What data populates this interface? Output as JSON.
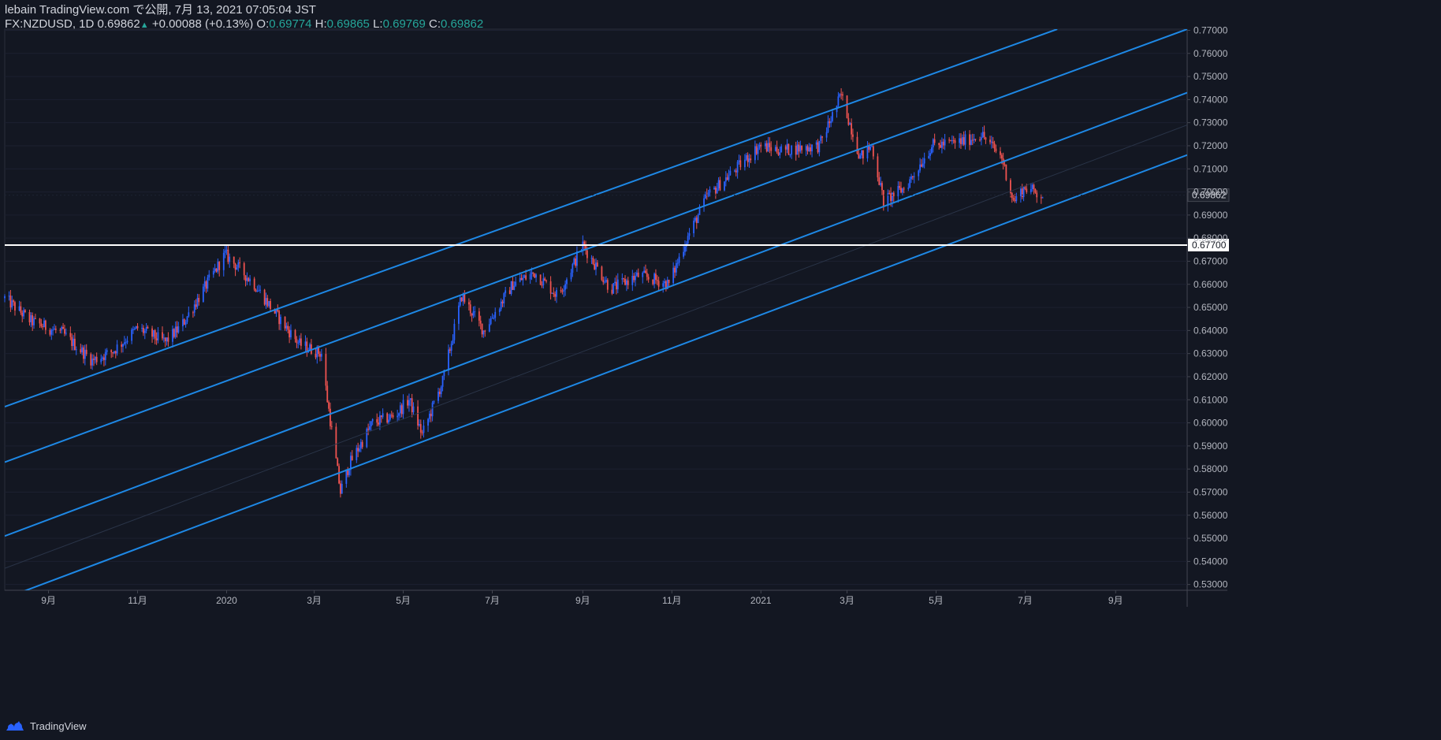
{
  "header": {
    "line1": "lebain TradingView.com で公開, 7月 13, 2021 07:05:04 JST",
    "symbol": "FX:NZDUSD, 1D",
    "last": "0.69862",
    "triangle": "▲",
    "change": "+0.00088 (+0.13%)",
    "o_label": "O:",
    "o_value": "0.69774",
    "h_label": "H:",
    "h_value": "0.69865",
    "l_label": "L:",
    "l_value": "0.69769",
    "c_label": "C:",
    "c_value": "0.69862"
  },
  "footer": {
    "brand": "TradingView"
  },
  "colors": {
    "background": "#131722",
    "up": "#2962ff",
    "down": "#ef5350",
    "channel": "#1e88e5",
    "level": "#ffffff"
  },
  "chart_data": {
    "type": "candlestick",
    "xlabel": "",
    "ylabel": "",
    "x_range": [
      "2019-08-02",
      "2021-10-20"
    ],
    "ylim": [
      0.5275,
      0.7705
    ],
    "y_ticks": [
      "0.77000",
      "0.76000",
      "0.75000",
      "0.74000",
      "0.73000",
      "0.72000",
      "0.71000",
      "0.70000",
      "0.69000",
      "0.68000",
      "0.67000",
      "0.66000",
      "0.65000",
      "0.64000",
      "0.63000",
      "0.62000",
      "0.61000",
      "0.60000",
      "0.59000",
      "0.58000",
      "0.57000",
      "0.56000",
      "0.55000",
      "0.54000",
      "0.53000"
    ],
    "x_ticks": [
      {
        "label": "9月",
        "date": "2019-09-01"
      },
      {
        "label": "11月",
        "date": "2019-11-01"
      },
      {
        "label": "2020",
        "date": "2020-01-01"
      },
      {
        "label": "3月",
        "date": "2020-03-01"
      },
      {
        "label": "5月",
        "date": "2020-05-01"
      },
      {
        "label": "7月",
        "date": "2020-07-01"
      },
      {
        "label": "9月",
        "date": "2020-09-01"
      },
      {
        "label": "11月",
        "date": "2020-11-01"
      },
      {
        "label": "2021",
        "date": "2021-01-01"
      },
      {
        "label": "3月",
        "date": "2021-03-01"
      },
      {
        "label": "5月",
        "date": "2021-05-01"
      },
      {
        "label": "7月",
        "date": "2021-07-01"
      },
      {
        "label": "9月",
        "date": "2021-09-01"
      }
    ],
    "price_path": [
      [
        "2019-08-02",
        0.654
      ],
      [
        "2019-08-20",
        0.644
      ],
      [
        "2019-09-10",
        0.639
      ],
      [
        "2019-10-01",
        0.627
      ],
      [
        "2019-10-15",
        0.631
      ],
      [
        "2019-11-01",
        0.641
      ],
      [
        "2019-11-20",
        0.635
      ],
      [
        "2019-12-01",
        0.642
      ],
      [
        "2019-12-31",
        0.673
      ],
      [
        "2020-01-20",
        0.66
      ],
      [
        "2020-02-05",
        0.646
      ],
      [
        "2020-02-20",
        0.634
      ],
      [
        "2020-03-06",
        0.63
      ],
      [
        "2020-03-10",
        0.61
      ],
      [
        "2020-03-19",
        0.57
      ],
      [
        "2020-03-25",
        0.582
      ],
      [
        "2020-04-10",
        0.6
      ],
      [
        "2020-04-25",
        0.603
      ],
      [
        "2020-05-05",
        0.61
      ],
      [
        "2020-05-14",
        0.595
      ],
      [
        "2020-05-28",
        0.618
      ],
      [
        "2020-06-10",
        0.655
      ],
      [
        "2020-06-25",
        0.64
      ],
      [
        "2020-07-15",
        0.66
      ],
      [
        "2020-07-30",
        0.665
      ],
      [
        "2020-08-15",
        0.655
      ],
      [
        "2020-09-01",
        0.677
      ],
      [
        "2020-09-20",
        0.658
      ],
      [
        "2020-10-10",
        0.664
      ],
      [
        "2020-10-30",
        0.66
      ],
      [
        "2020-11-10",
        0.678
      ],
      [
        "2020-11-25",
        0.698
      ],
      [
        "2020-12-15",
        0.71
      ],
      [
        "2020-12-31",
        0.72
      ],
      [
        "2021-01-15",
        0.718
      ],
      [
        "2021-02-10",
        0.72
      ],
      [
        "2021-02-25",
        0.742
      ],
      [
        "2021-03-10",
        0.715
      ],
      [
        "2021-03-18",
        0.72
      ],
      [
        "2021-03-26",
        0.696
      ],
      [
        "2021-04-10",
        0.702
      ],
      [
        "2021-04-28",
        0.72
      ],
      [
        "2021-05-20",
        0.722
      ],
      [
        "2021-06-01",
        0.725
      ],
      [
        "2021-06-15",
        0.715
      ],
      [
        "2021-06-23",
        0.696
      ],
      [
        "2021-07-01",
        0.702
      ],
      [
        "2021-07-13",
        0.6986
      ]
    ],
    "channel_lines": [
      {
        "name": "",
        "points": [
          [
            "2019-08-02",
            0.607
          ],
          [
            "2021-07-23",
            0.7705
          ]
        ]
      },
      {
        "name": "",
        "points": [
          [
            "2019-08-02",
            0.583
          ],
          [
            "2021-10-20",
            0.7705
          ]
        ]
      },
      {
        "name": "",
        "points": [
          [
            "2019-08-02",
            0.551
          ],
          [
            "2021-10-20",
            0.743
          ]
        ]
      },
      {
        "name": "",
        "points": [
          [
            "2019-08-02",
            0.537
          ],
          [
            "2021-10-20",
            0.729
          ],
          "faint"
        ]
      },
      {
        "name": "",
        "points": [
          [
            "2019-08-02",
            0.524
          ],
          [
            "2021-10-20",
            0.716
          ]
        ]
      }
    ],
    "horizontal_level": {
      "value": 0.677,
      "label": "0.67700"
    },
    "last_price_label": "0.69862",
    "grid": true
  }
}
